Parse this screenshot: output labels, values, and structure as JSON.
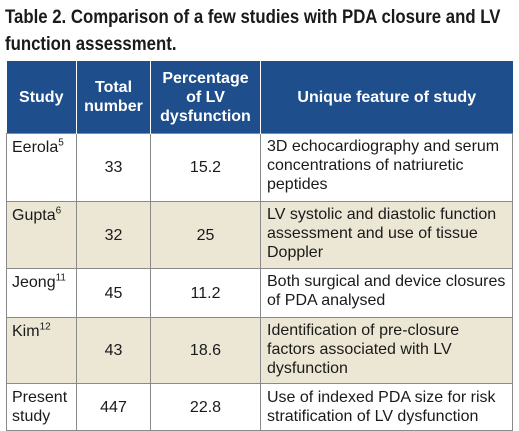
{
  "caption": {
    "line1": "Table 2. Comparison of a few studies with PDA closure and LV",
    "line2": "function assessment."
  },
  "table": {
    "headers": [
      "Study",
      "Total number",
      "Percentage of LV dysfunction",
      "Unique feature of study"
    ],
    "rows": [
      {
        "study": "Eerola",
        "ref": "5",
        "total": "33",
        "pct": "15.2",
        "feature": "3D echocardiography and serum concentrations of natriuretic peptides"
      },
      {
        "study": "Gupta",
        "ref": "6",
        "total": "32",
        "pct": "25",
        "feature": "LV systolic and diastolic function assessment and use of tissue Doppler"
      },
      {
        "study": "Jeong",
        "ref": "11",
        "total": "45",
        "pct": "11.2",
        "feature": "Both surgical and device closures of PDA analysed"
      },
      {
        "study": "Kim",
        "ref": "12",
        "total": "43",
        "pct": "18.6",
        "feature": "Identification of pre-closure factors associated with LV dysfunction"
      },
      {
        "study": "Present study",
        "ref": "",
        "total": "447",
        "pct": "22.8",
        "feature": "Use of indexed PDA size for risk stratification of LV dysfunction"
      }
    ]
  },
  "colors": {
    "header_bg": "#1f4e8c",
    "alt_row_bg": "#ece6d4",
    "border": "#8a8a8a"
  }
}
